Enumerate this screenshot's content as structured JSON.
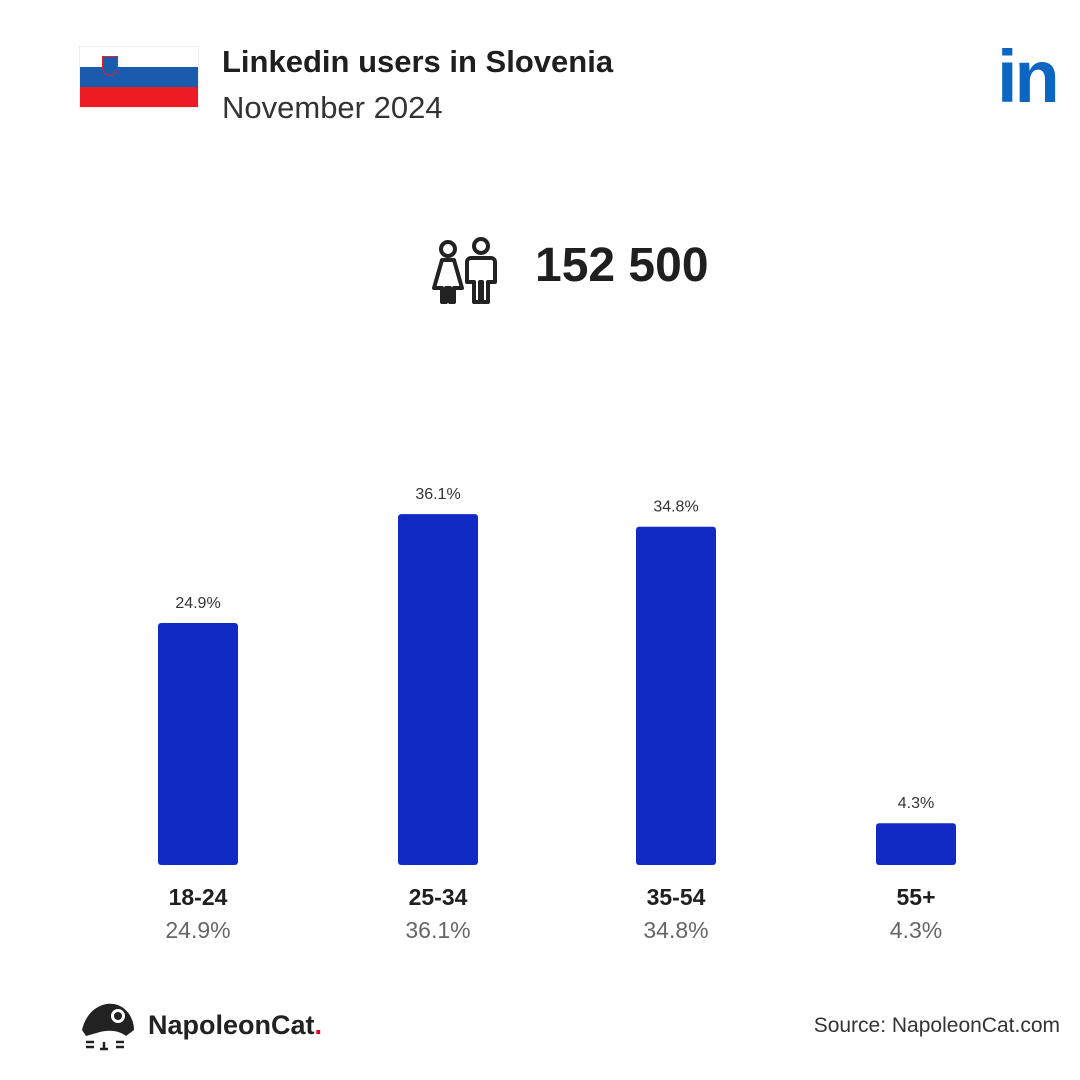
{
  "header": {
    "title": "Linkedin users in Slovenia",
    "subtitle": "November 2024",
    "flag_colors": [
      "#ffffff",
      "#1a5bad",
      "#ed1c24"
    ],
    "brand_icon": "linkedin-logo",
    "brand_icon_text": "in",
    "brand_color": "#0a66c2"
  },
  "summary": {
    "icon": "users-icon",
    "total": "152 500"
  },
  "chart_data": {
    "type": "bar",
    "categories": [
      "18-24",
      "25-34",
      "35-54",
      "55+"
    ],
    "values": [
      24.9,
      36.1,
      34.8,
      4.3
    ],
    "data_labels": [
      "24.9%",
      "36.1%",
      "34.8%",
      "4.3%"
    ],
    "bar_color": "#102ac3",
    "ylim": [
      0,
      40
    ],
    "grid": false
  },
  "footer": {
    "brand": "NapoleonCat",
    "brand_dot": ".",
    "source": "Source: NapoleonCat.com"
  }
}
